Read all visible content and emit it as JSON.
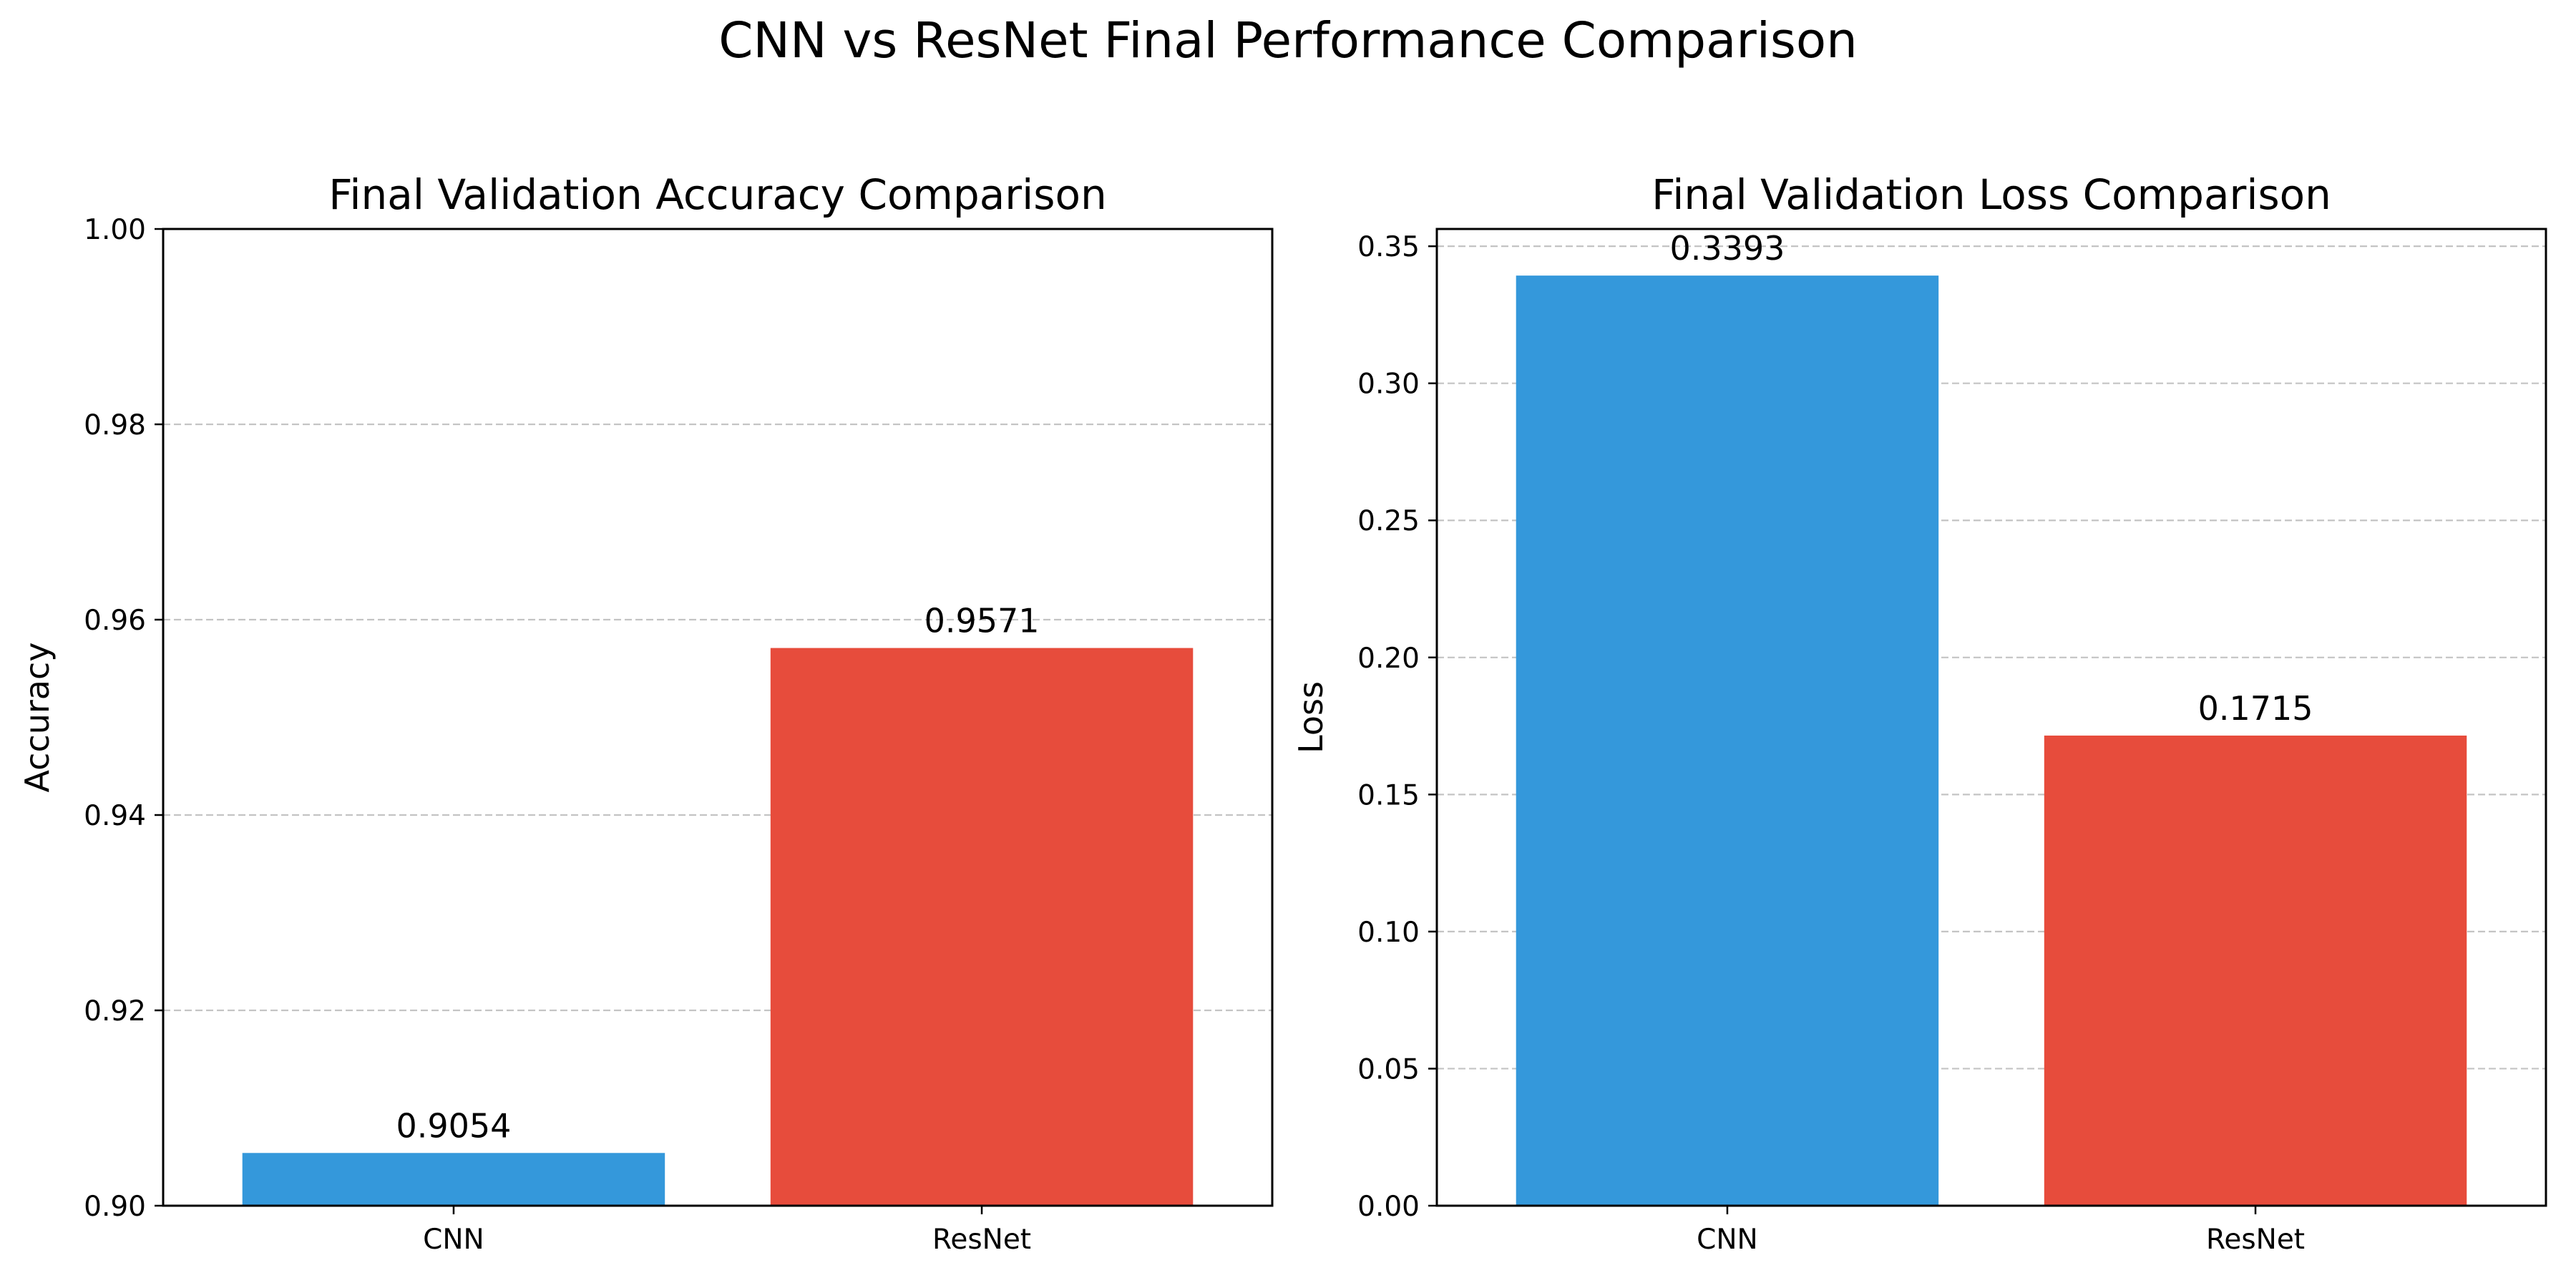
{
  "suptitle": "CNN vs ResNet Final Performance Comparison",
  "chart_data": [
    {
      "type": "bar",
      "title": "Final Validation Accuracy Comparison",
      "xlabel": "",
      "ylabel": "Accuracy",
      "categories": [
        "CNN",
        "ResNet"
      ],
      "values": [
        0.9054,
        0.9571
      ],
      "value_labels": [
        "0.9054",
        "0.9571"
      ],
      "colors": [
        "#3498db",
        "#e74c3c"
      ],
      "ylim": [
        0.9,
        1.0
      ],
      "yticks": [
        0.9,
        0.92,
        0.94,
        0.96,
        0.98,
        1.0
      ],
      "ytick_labels": [
        "0.90",
        "0.92",
        "0.94",
        "0.96",
        "0.98",
        "1.00"
      ],
      "grid": "y, dashed"
    },
    {
      "type": "bar",
      "title": "Final Validation Loss Comparison",
      "xlabel": "",
      "ylabel": "Loss",
      "categories": [
        "CNN",
        "ResNet"
      ],
      "values": [
        0.3393,
        0.1715
      ],
      "value_labels": [
        "0.3393",
        "0.1715"
      ],
      "colors": [
        "#3498db",
        "#e74c3c"
      ],
      "ylim": [
        0,
        0.3563
      ],
      "yticks": [
        0.0,
        0.05,
        0.1,
        0.15,
        0.2,
        0.25,
        0.3,
        0.35
      ],
      "ytick_labels": [
        "0.00",
        "0.05",
        "0.10",
        "0.15",
        "0.20",
        "0.25",
        "0.30",
        "0.35"
      ],
      "grid": "y, dashed"
    }
  ]
}
